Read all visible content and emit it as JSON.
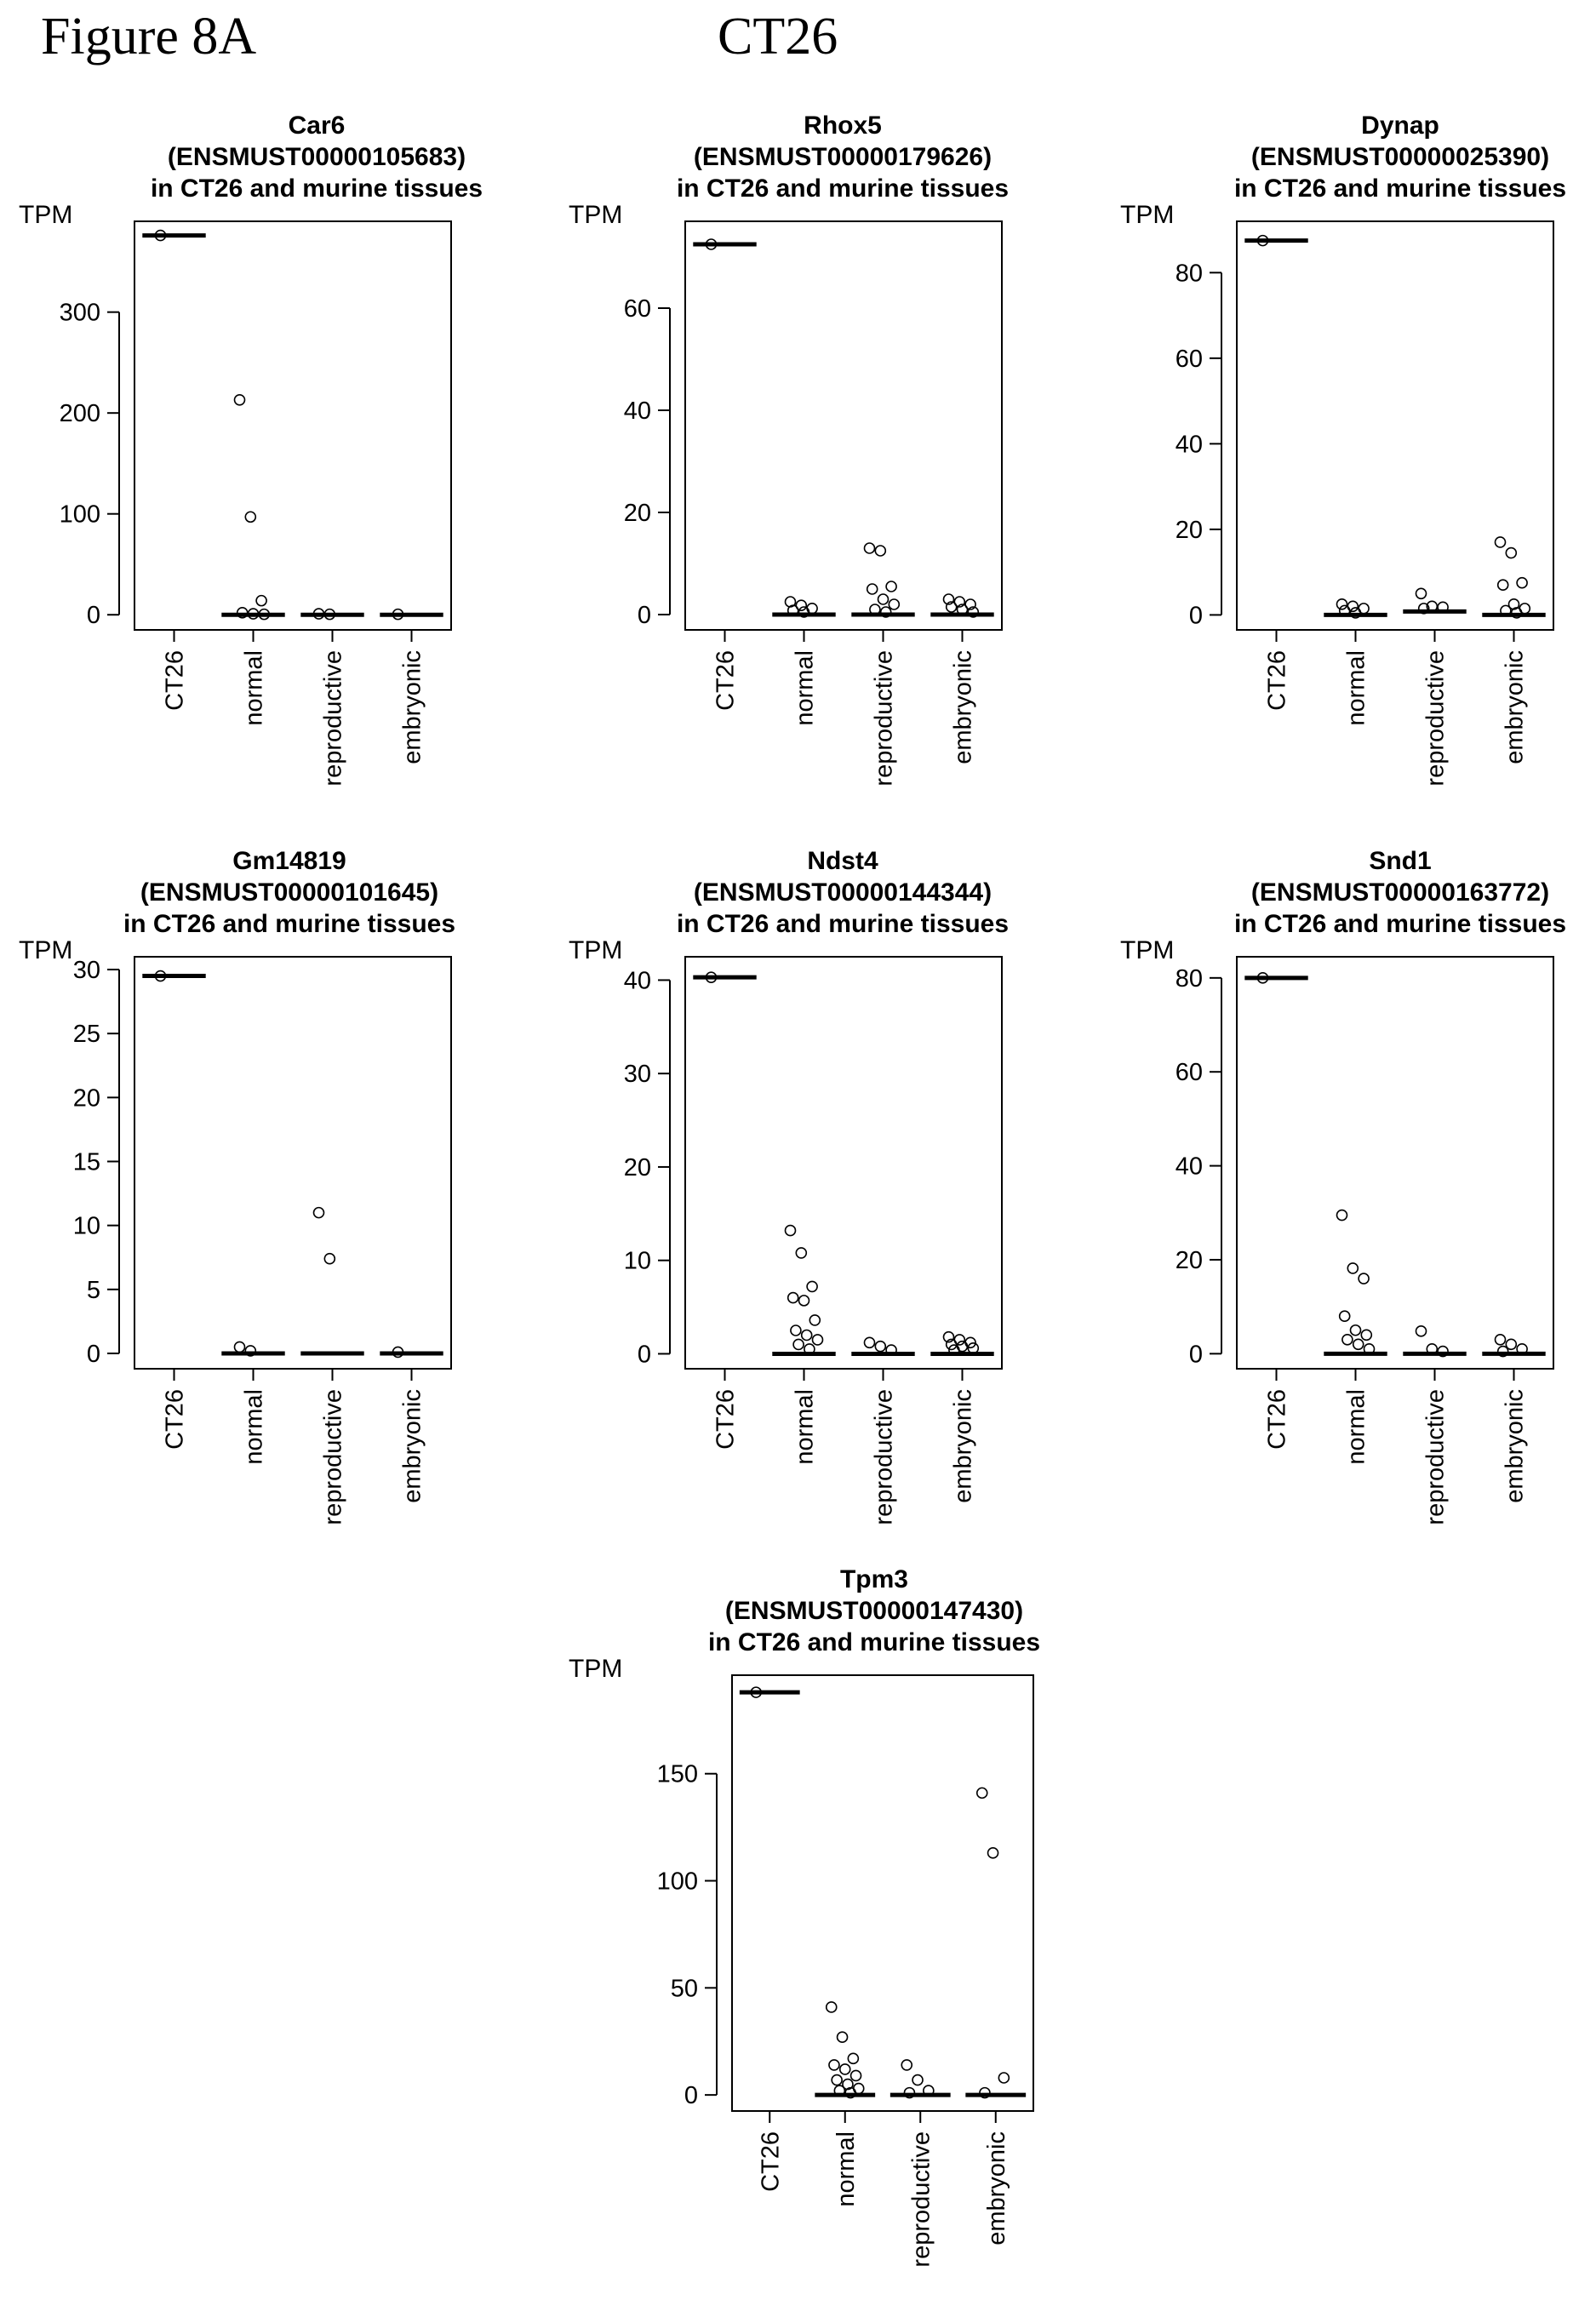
{
  "figure": {
    "label": "Figure 8A",
    "cell_line": "CT26"
  },
  "chart_data": [
    {
      "type": "boxplot",
      "title_lines": [
        "Car6",
        "(ENSMUST00000105683)",
        "in CT26 and murine tissues"
      ],
      "ylabel": "TPM",
      "categories": [
        "CT26",
        "normal",
        "reproductive",
        "embryonic"
      ],
      "ylim": [
        -15,
        390
      ],
      "yticks": [
        0,
        100,
        200,
        300
      ],
      "ytick_labels": [
        "0",
        "100",
        "200",
        "300"
      ],
      "medians": [
        376,
        0,
        0,
        0
      ],
      "outliers": [
        [
          376
        ],
        [
          213,
          97,
          14,
          2,
          1,
          0.5
        ],
        [
          1,
          0.5
        ],
        [
          0.5
        ]
      ]
    },
    {
      "type": "boxplot",
      "title_lines": [
        "Rhox5",
        "(ENSMUST00000179626)",
        "in CT26 and murine tissues"
      ],
      "ylabel": "TPM",
      "categories": [
        "CT26",
        "normal",
        "reproductive",
        "embryonic"
      ],
      "ylim": [
        -3,
        77
      ],
      "yticks": [
        0,
        20,
        40,
        60
      ],
      "ytick_labels": [
        "0",
        "20",
        "40",
        "60"
      ],
      "medians": [
        72.5,
        0,
        0,
        0
      ],
      "outliers": [
        [
          72.5
        ],
        [
          2.5,
          1.8,
          1.2,
          0.8,
          0.5
        ],
        [
          13,
          12.5,
          5.5,
          5,
          3,
          2,
          1,
          0.5
        ],
        [
          3,
          2.5,
          2,
          1.5,
          1,
          0.5
        ]
      ]
    },
    {
      "type": "boxplot",
      "title_lines": [
        "Dynap",
        "(ENSMUST00000025390)",
        "in CT26 and murine tissues"
      ],
      "ylabel": "TPM",
      "categories": [
        "CT26",
        "normal",
        "reproductive",
        "embryonic"
      ],
      "ylim": [
        -3.5,
        92
      ],
      "yticks": [
        0,
        20,
        40,
        60,
        80
      ],
      "ytick_labels": [
        "0",
        "20",
        "40",
        "60",
        "80"
      ],
      "medians": [
        87.5,
        0,
        0.8,
        0
      ],
      "outliers": [
        [
          87.5
        ],
        [
          2.5,
          2,
          1.5,
          1,
          0.5
        ],
        [
          5,
          2,
          1.8,
          1.5
        ],
        [
          17,
          14.5,
          7.5,
          7,
          2.5,
          1.5,
          1,
          0.5
        ]
      ]
    },
    {
      "type": "boxplot",
      "title_lines": [
        "Gm14819",
        "(ENSMUST00000101645)",
        "in CT26 and murine tissues"
      ],
      "ylabel": "TPM",
      "categories": [
        "CT26",
        "normal",
        "reproductive",
        "embryonic"
      ],
      "ylim": [
        -1.2,
        31
      ],
      "yticks": [
        0,
        5,
        10,
        15,
        20,
        25,
        30
      ],
      "ytick_labels": [
        "0",
        "5",
        "10",
        "15",
        "20",
        "25",
        "30"
      ],
      "medians": [
        29.5,
        0,
        0,
        0
      ],
      "outliers": [
        [
          29.5
        ],
        [
          0.5,
          0.2
        ],
        [
          11,
          7.4
        ],
        [
          0.1
        ]
      ]
    },
    {
      "type": "boxplot",
      "title_lines": [
        "Ndst4",
        "(ENSMUST00000144344)",
        "in CT26 and murine tissues"
      ],
      "ylabel": "TPM",
      "categories": [
        "CT26",
        "normal",
        "reproductive",
        "embryonic"
      ],
      "ylim": [
        -1.6,
        42.5
      ],
      "yticks": [
        0,
        10,
        20,
        30,
        40
      ],
      "ytick_labels": [
        "0",
        "10",
        "20",
        "30",
        "40"
      ],
      "medians": [
        40.3,
        0,
        0,
        0
      ],
      "outliers": [
        [
          40.3
        ],
        [
          13.2,
          10.8,
          7.2,
          6,
          5.7,
          3.6,
          2.5,
          2,
          1.5,
          1,
          0.5
        ],
        [
          1.2,
          0.8,
          0.4
        ],
        [
          1.8,
          1.5,
          1.2,
          1,
          0.8,
          0.6,
          0.4
        ]
      ]
    },
    {
      "type": "boxplot",
      "title_lines": [
        "Snd1",
        "(ENSMUST00000163772)",
        "in CT26 and murine tissues"
      ],
      "ylabel": "TPM",
      "categories": [
        "CT26",
        "normal",
        "reproductive",
        "embryonic"
      ],
      "ylim": [
        -3.2,
        84.5
      ],
      "yticks": [
        0,
        20,
        40,
        60,
        80
      ],
      "ytick_labels": [
        "0",
        "20",
        "40",
        "60",
        "80"
      ],
      "medians": [
        80,
        0,
        0,
        0
      ],
      "outliers": [
        [
          80
        ],
        [
          29.5,
          18.2,
          16,
          8,
          5,
          4,
          3,
          2,
          1
        ],
        [
          4.8,
          1,
          0.5
        ],
        [
          3,
          2,
          1,
          0.5
        ]
      ]
    },
    {
      "type": "boxplot",
      "title_lines": [
        "Tpm3",
        "(ENSMUST00000147430)",
        "in CT26 and murine tissues"
      ],
      "ylabel": "TPM",
      "categories": [
        "CT26",
        "normal",
        "reproductive",
        "embryonic"
      ],
      "ylim": [
        -7.5,
        196
      ],
      "yticks": [
        0,
        50,
        100,
        150
      ],
      "ytick_labels": [
        "0",
        "50",
        "100",
        "150"
      ],
      "medians": [
        188,
        0,
        0,
        0
      ],
      "outliers": [
        [
          188
        ],
        [
          41,
          27,
          17,
          14,
          12,
          9,
          7,
          5,
          3,
          2,
          1
        ],
        [
          14,
          7,
          2,
          1
        ],
        [
          141,
          113,
          8,
          1
        ]
      ]
    }
  ]
}
